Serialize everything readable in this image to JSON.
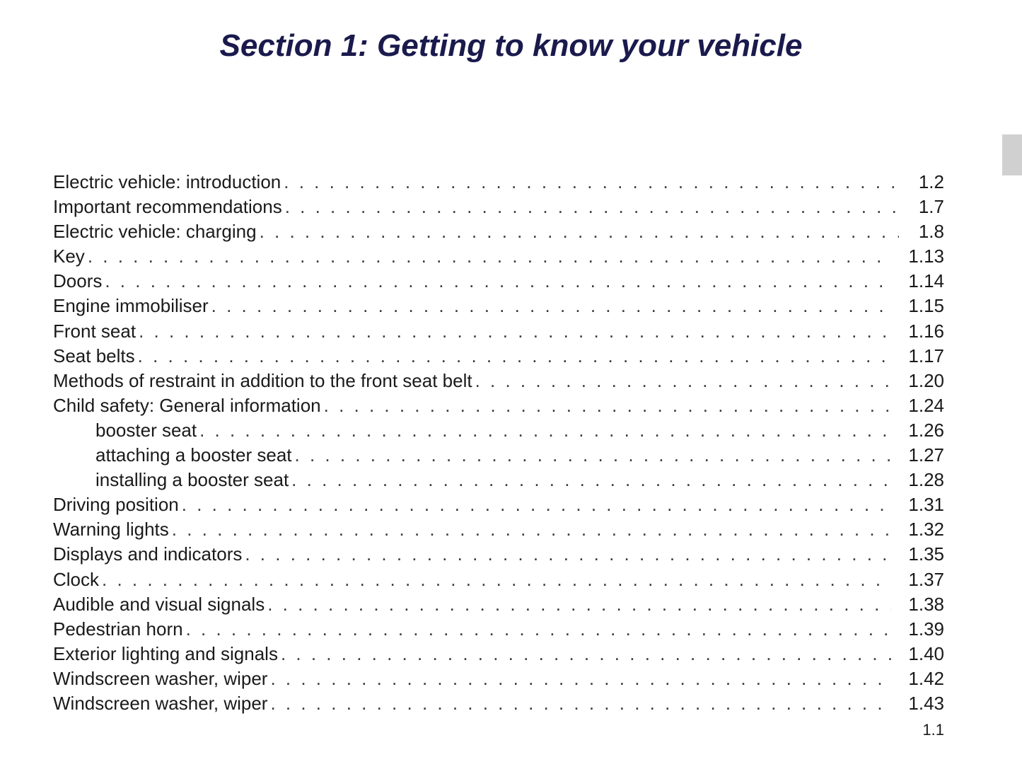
{
  "title": "Section 1: Getting to know your vehicle",
  "title_color": "#1a1a4d",
  "title_fontsize": 44,
  "title_fontstyle": "italic",
  "title_fontweight": "bold",
  "body_fontsize": 26,
  "body_color": "#1a1a1a",
  "background_color": "#ffffff",
  "tab_marker_color": "#d0d0d0",
  "toc": [
    {
      "label": "Electric vehicle: introduction",
      "page": "1.2",
      "indent": 0
    },
    {
      "label": "Important recommendations",
      "page": "1.7",
      "indent": 0
    },
    {
      "label": "Electric vehicle: charging",
      "page": "1.8",
      "indent": 0
    },
    {
      "label": "Key",
      "page": "1.13",
      "indent": 0
    },
    {
      "label": "Doors",
      "page": "1.14",
      "indent": 0
    },
    {
      "label": "Engine immobiliser",
      "page": "1.15",
      "indent": 0
    },
    {
      "label": "Front seat",
      "page": "1.16",
      "indent": 0
    },
    {
      "label": "Seat belts",
      "page": "1.17",
      "indent": 0
    },
    {
      "label": "Methods of restraint in addition to the front seat belt",
      "page": "1.20",
      "indent": 0
    },
    {
      "label": "Child safety: General information",
      "page": "1.24",
      "indent": 0
    },
    {
      "label": "booster seat",
      "page": "1.26",
      "indent": 1
    },
    {
      "label": "attaching a booster seat",
      "page": "1.27",
      "indent": 1
    },
    {
      "label": "installing a booster seat",
      "page": "1.28",
      "indent": 1
    },
    {
      "label": "Driving position",
      "page": "1.31",
      "indent": 0
    },
    {
      "label": "Warning lights",
      "page": "1.32",
      "indent": 0
    },
    {
      "label": "Displays and indicators",
      "page": "1.35",
      "indent": 0
    },
    {
      "label": "Clock",
      "page": "1.37",
      "indent": 0
    },
    {
      "label": "Audible and visual signals",
      "page": "1.38",
      "indent": 0
    },
    {
      "label": "Pedestrian horn",
      "page": "1.39",
      "indent": 0
    },
    {
      "label": "Exterior lighting and signals",
      "page": "1.40",
      "indent": 0
    },
    {
      "label": "Windscreen washer, wiper",
      "page": "1.42",
      "indent": 0
    },
    {
      "label": "Windscreen washer, wiper",
      "page": "1.43",
      "indent": 0
    }
  ],
  "page_number": "1.1"
}
